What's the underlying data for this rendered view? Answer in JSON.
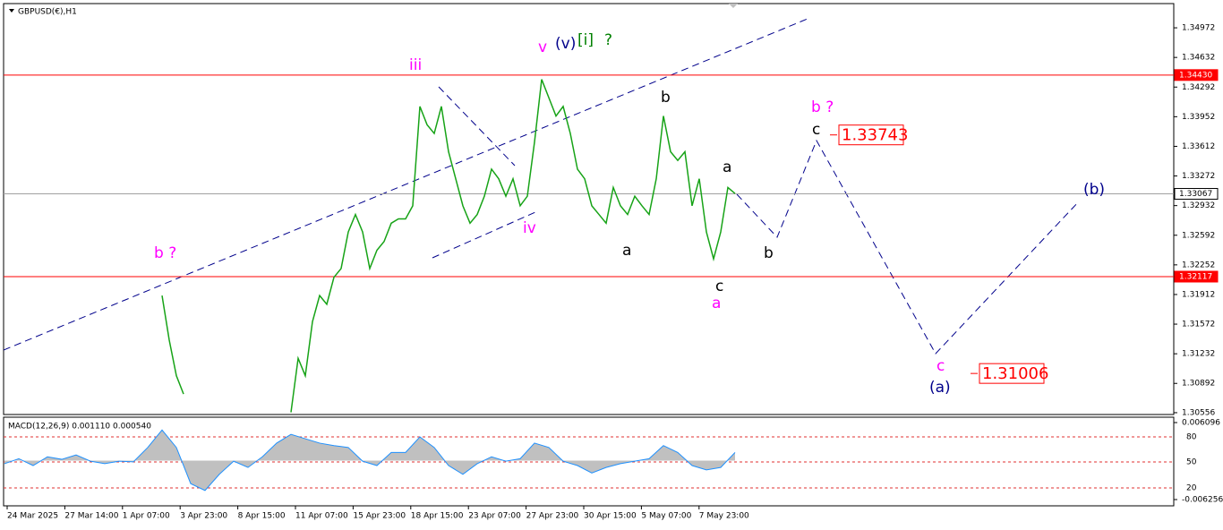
{
  "chart_data": [
    {
      "type": "line",
      "title": "GBPUSD(€),H1",
      "values": [
        null,
        null,
        null,
        null,
        null,
        null,
        null,
        null,
        null,
        null,
        null,
        null,
        null,
        null,
        null,
        null,
        null,
        null,
        null,
        null,
        null,
        null,
        1.319,
        1.3139,
        1.3098,
        1.3077,
        null,
        null,
        null,
        null,
        null,
        null,
        null,
        null,
        null,
        null,
        null,
        null,
        null,
        null,
        1.3056,
        1.3118,
        1.3098,
        1.316,
        1.319,
        1.318,
        1.3211,
        1.3221,
        1.3263,
        1.3283,
        1.3263,
        1.3221,
        1.3242,
        1.3252,
        1.3273,
        1.3278,
        1.3278,
        1.3293,
        1.3407,
        1.3386,
        1.3376,
        1.3407,
        1.3355,
        1.3324,
        1.3293,
        1.3273,
        1.3283,
        1.3304,
        1.3335,
        1.3324,
        1.3304,
        1.3324,
        1.3293,
        1.3304,
        1.3366,
        1.3438,
        1.3417,
        1.3396,
        1.3407,
        1.3376,
        1.3335,
        1.3324,
        1.3293,
        1.3283,
        1.3273,
        1.3314,
        1.3293,
        1.3283,
        1.3304,
        1.3293,
        1.3283,
        1.3324,
        1.3396,
        1.3355,
        1.3345,
        1.3355,
        1.3293,
        1.3324,
        1.3263,
        1.3232,
        1.3263,
        1.3314,
        1.3307
      ],
      "color": "#17a317",
      "ylim": [
        1.30535,
        1.3525
      ],
      "yticks": [
        1.34972,
        1.34632,
        1.34292,
        1.33952,
        1.33612,
        1.33272,
        1.32932,
        1.32592,
        1.32252,
        1.31912,
        1.31572,
        1.31232,
        1.30892,
        1.30556
      ],
      "levels": [
        {
          "value": 1.3443,
          "label": "1.34430",
          "color": "#ff0000"
        },
        {
          "value": 1.33067,
          "color": "#a0a0a0"
        },
        {
          "value": 1.32117,
          "color": "#ff0000"
        }
      ],
      "x_labels": [
        "24 Mar 2025",
        "27 Mar 14:00",
        "1 Apr 07:00",
        "3 Apr 23:00",
        "8 Apr 15:00",
        "11 Apr 07:00",
        "15 Apr 23:00",
        "18 Apr 15:00",
        "23 Apr 07:00",
        "27 Apr 23:00",
        "30 Apr 15:00",
        "5 May 07:00",
        "7 May 23:00"
      ],
      "annotations": [
        {
          "text": "b ?",
          "color": "#ff00ff"
        },
        {
          "text": "iii",
          "color": "#ff00ff"
        },
        {
          "text": "iv",
          "color": "#ff00ff"
        },
        {
          "text": "v",
          "color": "#ff00ff"
        },
        {
          "text": "(v)",
          "color": "#00008b"
        },
        {
          "text": "[i]",
          "color": "#008000"
        },
        {
          "text": "?",
          "color": "#008000"
        },
        {
          "text": "b",
          "color": "#000000"
        },
        {
          "text": "a",
          "color": "#000000"
        },
        {
          "text": "a",
          "color": "#000000"
        },
        {
          "text": "c",
          "color": "#000000"
        },
        {
          "text": "a",
          "color": "#ff00ff"
        },
        {
          "text": "b",
          "color": "#000000"
        },
        {
          "text": "b ?",
          "color": "#ff00ff"
        },
        {
          "text": "c",
          "color": "#000000"
        },
        {
          "text": "c",
          "color": "#ff00ff"
        },
        {
          "text": "(a)",
          "color": "#00008b"
        },
        {
          "text": "(b)",
          "color": "#00008b"
        }
      ],
      "targets": [
        1.33743,
        1.31006
      ]
    },
    {
      "type": "area",
      "title": "MACD(12,26,9) 0.001110 0.000540",
      "values": [
        -0.0005,
        0.0003,
        -0.0008,
        0.0006,
        0.0002,
        0.0009,
        -0.0001,
        -0.0005,
        -0.0001,
        -0.0002,
        0.0021,
        0.0049,
        0.0021,
        -0.0037,
        -0.0048,
        -0.0022,
        -0.0001,
        -0.0011,
        0.0006,
        0.0028,
        0.0042,
        0.0035,
        0.0028,
        0.0024,
        0.0021,
        -0.0001,
        -0.0008,
        0.0013,
        0.0013,
        0.0038,
        0.0021,
        -0.0008,
        -0.0022,
        -0.0005,
        0.0006,
        -0.0001,
        0.0003,
        0.0028,
        0.0021,
        -0.0001,
        -0.0008,
        -0.002,
        -0.0011,
        -0.0005,
        -0.0001,
        0.0003,
        0.0024,
        0.0013,
        -0.0008,
        -0.0015,
        -0.0011,
        0.0013
      ],
      "color": "#c0c0c0",
      "line_color": "#1e90ff",
      "ylim": [
        -0.006256,
        0.006096
      ],
      "yticks": [
        0.006096,
        -0.006256
      ],
      "level_labels": [
        "80",
        "50",
        "20"
      ]
    }
  ]
}
